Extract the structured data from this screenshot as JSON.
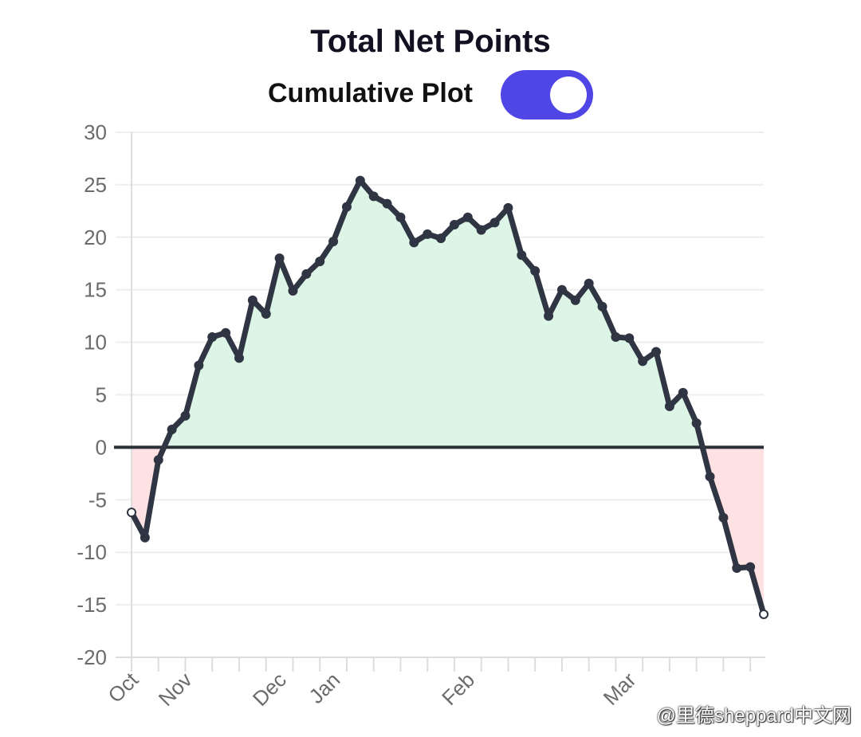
{
  "header": {
    "title": "Total Net Points",
    "toggle_label": "Cumulative Plot",
    "toggle_on": true
  },
  "colors": {
    "accent": "#5046e5",
    "line": "#2f3542",
    "positive_fill": "#dcf5e6",
    "negative_fill": "#fde1e3",
    "zero_line": "#2b3038",
    "grid": "#eeeeee"
  },
  "watermark": "@里德sheppard中文网",
  "chart_data": {
    "type": "area",
    "title": "Total Net Points",
    "xlabel": "",
    "ylabel": "",
    "ylim": [
      -20,
      30
    ],
    "y_ticks": [
      30,
      25,
      20,
      15,
      10,
      5,
      0,
      -5,
      -10,
      -15,
      -20
    ],
    "month_labels": [
      {
        "label": "Oct",
        "index": 0
      },
      {
        "label": "Nov",
        "index": 4
      },
      {
        "label": "Dec",
        "index": 11
      },
      {
        "label": "Jan",
        "index": 15
      },
      {
        "label": "Feb",
        "index": 25
      },
      {
        "label": "Mar",
        "index": 37
      }
    ],
    "grid": true,
    "series": [
      {
        "values": [
          -6.2,
          -8.6,
          -1.2,
          1.7,
          3.0,
          7.8,
          10.5,
          10.9,
          8.5,
          14.0,
          12.7,
          18.0,
          14.9,
          16.5,
          17.7,
          19.6,
          22.9,
          25.4,
          23.9,
          23.2,
          21.9,
          19.5,
          20.3,
          19.9,
          21.2,
          21.9,
          20.7,
          21.4,
          22.8,
          18.3,
          16.8,
          12.5,
          15.0,
          14.0,
          15.6,
          13.4,
          10.5,
          10.4,
          8.2,
          9.1,
          3.9,
          5.2,
          2.3,
          -2.8,
          -6.7,
          -11.5,
          -11.4,
          -15.9
        ]
      }
    ]
  }
}
